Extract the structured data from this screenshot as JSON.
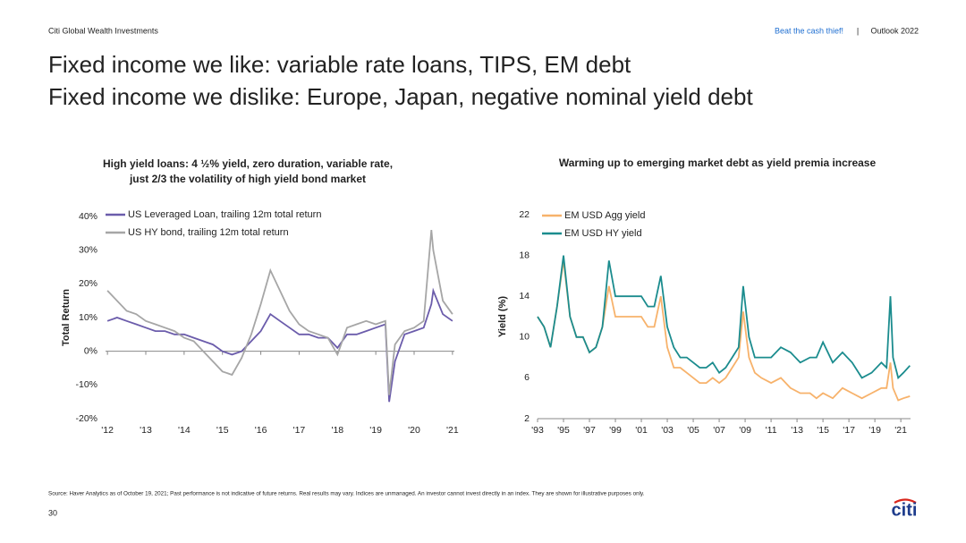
{
  "header": {
    "left": "Citi Global Wealth Investments",
    "link": "Beat the cash thief!",
    "separator": "|",
    "right": "Outlook 2022"
  },
  "title_lines": [
    "Fixed income we like: variable rate loans, TIPS, EM debt",
    "Fixed income we dislike: Europe, Japan, negative nominal yield debt"
  ],
  "chart_data": [
    {
      "type": "line",
      "title": [
        "High yield loans: 4 ½% yield, zero duration, variable rate,",
        "just 2/3 the volatility of high yield bond market"
      ],
      "y_label": "Total Return",
      "x": [
        2012,
        2012.25,
        2012.5,
        2012.75,
        2013,
        2013.25,
        2013.5,
        2013.75,
        2014,
        2014.25,
        2014.5,
        2014.75,
        2015,
        2015.25,
        2015.5,
        2015.75,
        2016,
        2016.25,
        2016.5,
        2016.75,
        2017,
        2017.25,
        2017.5,
        2017.75,
        2018,
        2018.25,
        2018.5,
        2018.75,
        2019,
        2019.25,
        2019.35,
        2019.5,
        2019.75,
        2020,
        2020.25,
        2020.45,
        2020.5,
        2020.75,
        2021
      ],
      "series": [
        {
          "name": "US Leveraged Loan, trailing 12m total return",
          "color": "#6b5cab",
          "values": [
            9,
            10,
            9,
            8,
            7,
            6,
            6,
            5,
            5,
            4,
            3,
            2,
            0,
            -1,
            0,
            3,
            6,
            11,
            9,
            7,
            5,
            5,
            4,
            4,
            1,
            5,
            5,
            6,
            7,
            8,
            -15,
            -3,
            5,
            6,
            7,
            14,
            18,
            11,
            9
          ]
        },
        {
          "name": "US HY bond, trailing 12m total return",
          "color": "#a6a6a6",
          "values": [
            18,
            15,
            12,
            11,
            9,
            8,
            7,
            6,
            4,
            3,
            0,
            -3,
            -6,
            -7,
            -2,
            5,
            14,
            24,
            18,
            12,
            8,
            6,
            5,
            4,
            -1,
            7,
            8,
            9,
            8,
            9,
            -13,
            2,
            6,
            7,
            9,
            36,
            30,
            15,
            11
          ]
        }
      ],
      "xlim": [
        2011.95,
        2021.05
      ],
      "xticks": [
        {
          "value": 2012,
          "label": "'12"
        },
        {
          "value": 2013,
          "label": "'13"
        },
        {
          "value": 2014,
          "label": "'14"
        },
        {
          "value": 2015,
          "label": "'15"
        },
        {
          "value": 2016,
          "label": "'16"
        },
        {
          "value": 2017,
          "label": "'17"
        },
        {
          "value": 2018,
          "label": "'18"
        },
        {
          "value": 2019,
          "label": "'19"
        },
        {
          "value": 2020,
          "label": "'20"
        },
        {
          "value": 2021,
          "label": "'21"
        }
      ],
      "ylim": [
        -20,
        40
      ],
      "yticks": [
        {
          "value": -20,
          "label": "-20%"
        },
        {
          "value": -10,
          "label": "-10%"
        },
        {
          "value": 0,
          "label": "0%"
        },
        {
          "value": 10,
          "label": "10%"
        },
        {
          "value": 20,
          "label": "20%"
        },
        {
          "value": 30,
          "label": "30%"
        },
        {
          "value": 40,
          "label": "40%"
        }
      ],
      "grid": false
    },
    {
      "type": "line",
      "title": "Warming up to emerging market debt as yield premia increase",
      "y_label": "Yield (%)",
      "x": [
        1993,
        1993.5,
        1994,
        1994.5,
        1995,
        1995.5,
        1996,
        1996.5,
        1997,
        1997.5,
        1998,
        1998.5,
        1999,
        1999.5,
        2000,
        2000.5,
        2001,
        2001.5,
        2002,
        2002.5,
        2003,
        2003.5,
        2004,
        2004.5,
        2005,
        2005.5,
        2006,
        2006.5,
        2007,
        2007.5,
        2008,
        2008.5,
        2008.85,
        2009.3,
        2009.75,
        2010.25,
        2011,
        2011.75,
        2012.5,
        2013.25,
        2014,
        2014.5,
        2015,
        2015.75,
        2016.5,
        2017.25,
        2018,
        2018.75,
        2019.5,
        2019.9,
        2020.2,
        2020.4,
        2020.8,
        2021.2,
        2021.7
      ],
      "series": [
        {
          "name": "EM USD Agg yield",
          "color": "#f7b26b",
          "values": [
            12,
            11,
            9,
            13,
            17.5,
            12,
            10,
            10,
            8.5,
            9,
            11,
            15,
            12,
            12,
            12,
            12,
            12,
            11,
            11,
            14,
            9,
            7,
            7,
            6.5,
            6,
            5.5,
            5.5,
            6,
            5.5,
            6,
            7,
            8,
            12.5,
            8,
            6.5,
            6,
            5.5,
            6,
            5,
            4.5,
            4.5,
            4,
            4.5,
            4,
            5,
            4.5,
            4,
            4.5,
            5,
            5,
            7.5,
            5,
            3.8,
            4,
            4.2
          ]
        },
        {
          "name": "EM USD HY yield",
          "color": "#1b8c8e",
          "values": [
            12,
            11,
            9,
            13,
            18,
            12,
            10,
            10,
            8.5,
            9,
            11,
            17.5,
            14,
            14,
            14,
            14,
            14,
            13,
            13,
            16,
            11,
            9,
            8,
            8,
            7.5,
            7,
            7,
            7.5,
            6.5,
            7,
            8,
            9,
            15,
            10,
            8,
            8,
            8,
            9,
            8.5,
            7.5,
            8,
            8,
            9.5,
            7.5,
            8.5,
            7.5,
            6,
            6.5,
            7.5,
            7,
            14,
            8,
            6,
            6.5,
            7.2
          ]
        }
      ],
      "xlim": [
        1993,
        2021.75
      ],
      "xticks": [
        {
          "value": 1993,
          "label": "'93"
        },
        {
          "value": 1995,
          "label": "'95"
        },
        {
          "value": 1997,
          "label": "'97"
        },
        {
          "value": 1999,
          "label": "'99"
        },
        {
          "value": 2001,
          "label": "'01"
        },
        {
          "value": 2003,
          "label": "'03"
        },
        {
          "value": 2005,
          "label": "'05"
        },
        {
          "value": 2007,
          "label": "'07"
        },
        {
          "value": 2009,
          "label": "'09"
        },
        {
          "value": 2011,
          "label": "'11"
        },
        {
          "value": 2013,
          "label": "'13"
        },
        {
          "value": 2015,
          "label": "'15"
        },
        {
          "value": 2017,
          "label": "'17"
        },
        {
          "value": 2019,
          "label": "'19"
        },
        {
          "value": 2021,
          "label": "'21"
        }
      ],
      "ylim": [
        2,
        22
      ],
      "yticks": [
        2,
        6,
        10,
        14,
        18,
        22
      ],
      "grid": false
    }
  ],
  "footer": {
    "source": "Source: Haver Analytics as of October 19, 2021; Past performance is not indicative of future returns. Real results may vary. Indices are unmanaged. An investor cannot invest directly in an index. They are shown for illustrative purposes only.",
    "page_number": "30",
    "logo": "citi"
  }
}
